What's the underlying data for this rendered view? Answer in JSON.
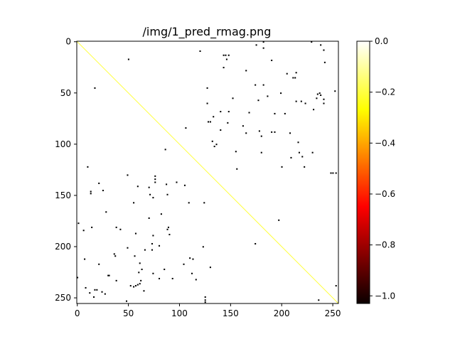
{
  "chart_data": {
    "type": "heatmap",
    "title": "/img/1_pred_rmag.png",
    "xlabel": "",
    "ylabel": "",
    "size": 256,
    "xlim": [
      0,
      255
    ],
    "ylim": [
      255,
      0
    ],
    "xticks": [
      0,
      50,
      100,
      150,
      200,
      250
    ],
    "yticks": [
      0,
      50,
      100,
      150,
      200,
      250
    ],
    "colormap": "hot",
    "background_value": 0.0,
    "diagonal": {
      "value": -0.21,
      "color": "#ffff40"
    },
    "marked_value": -1.0,
    "marked_color": "#000000",
    "colorbar": {
      "vmin": -1.03,
      "vmax": 0.0,
      "ticks": [
        0.0,
        -0.2,
        -0.4,
        -0.6,
        -0.8,
        -1.0
      ],
      "tick_labels": [
        "0.0",
        "−0.2",
        "−0.4",
        "−0.6",
        "−0.8",
        "−1.0"
      ]
    },
    "marked_cells_rowcol": [
      [
        0,
        182
      ],
      [
        0,
        229
      ],
      [
        3,
        175
      ],
      [
        3,
        238
      ],
      [
        6,
        182
      ],
      [
        8,
        241
      ],
      [
        9,
        120
      ],
      [
        13,
        143
      ],
      [
        13,
        145
      ],
      [
        13,
        148
      ],
      [
        17,
        50
      ],
      [
        17,
        146
      ],
      [
        18,
        190
      ],
      [
        20,
        242
      ],
      [
        25,
        143
      ],
      [
        28,
        165
      ],
      [
        30,
        214
      ],
      [
        31,
        205
      ],
      [
        35,
        211
      ],
      [
        35,
        213
      ],
      [
        42,
        174
      ],
      [
        42,
        182
      ],
      [
        45,
        17
      ],
      [
        45,
        127
      ],
      [
        48,
        252
      ],
      [
        50,
        199
      ],
      [
        50,
        237
      ],
      [
        51,
        235
      ],
      [
        52,
        238
      ],
      [
        53,
        186
      ],
      [
        55,
        152
      ],
      [
        55,
        234
      ],
      [
        56,
        241
      ],
      [
        57,
        177
      ],
      [
        58,
        214
      ],
      [
        58,
        219
      ],
      [
        60,
        127
      ],
      [
        60,
        223
      ],
      [
        60,
        241
      ],
      [
        66,
        231
      ],
      [
        68,
        140
      ],
      [
        68,
        148
      ],
      [
        69,
        168
      ],
      [
        70,
        193
      ],
      [
        70,
        203
      ],
      [
        73,
        133
      ],
      [
        78,
        128
      ],
      [
        78,
        130
      ],
      [
        79,
        147
      ],
      [
        82,
        162
      ],
      [
        84,
        106
      ],
      [
        86,
        140
      ],
      [
        87,
        178
      ],
      [
        88,
        190
      ],
      [
        88,
        193
      ],
      [
        89,
        165
      ],
      [
        89,
        208
      ],
      [
        92,
        180
      ],
      [
        97,
        132
      ],
      [
        98,
        216
      ],
      [
        100,
        136
      ],
      [
        102,
        134
      ],
      [
        105,
        86
      ],
      [
        107,
        155
      ],
      [
        108,
        180
      ],
      [
        108,
        217
      ],
      [
        108,
        230
      ],
      [
        112,
        220
      ],
      [
        113,
        209
      ],
      [
        122,
        10
      ],
      [
        122,
        200
      ],
      [
        122,
        222
      ],
      [
        124,
        156
      ],
      [
        128,
        248
      ],
      [
        128,
        250
      ],
      [
        128,
        253
      ],
      [
        130,
        49
      ],
      [
        131,
        76
      ],
      [
        134,
        76
      ],
      [
        137,
        76
      ],
      [
        137,
        97
      ],
      [
        138,
        21
      ],
      [
        139,
        87
      ],
      [
        140,
        105
      ],
      [
        141,
        59
      ],
      [
        142,
        70
      ],
      [
        145,
        25
      ],
      [
        146,
        13
      ],
      [
        148,
        13
      ],
      [
        149,
        71
      ],
      [
        149,
        88
      ],
      [
        152,
        74
      ],
      [
        157,
        55
      ],
      [
        157,
        109
      ],
      [
        157,
        124
      ],
      [
        166,
        28
      ],
      [
        168,
        82
      ],
      [
        172,
        70
      ],
      [
        174,
        197
      ],
      [
        177,
        1
      ],
      [
        181,
        14
      ],
      [
        181,
        38
      ],
      [
        181,
        89
      ],
      [
        183,
        42
      ],
      [
        183,
        88
      ],
      [
        184,
        6
      ],
      [
        187,
        57
      ],
      [
        188,
        90
      ],
      [
        189,
        74
      ],
      [
        197,
        174
      ],
      [
        197,
        73
      ],
      [
        199,
        80
      ],
      [
        200,
        123
      ],
      [
        201,
        49
      ],
      [
        203,
        66
      ],
      [
        203,
        73
      ],
      [
        207,
        36
      ],
      [
        209,
        37
      ],
      [
        209,
        56
      ],
      [
        211,
        110
      ],
      [
        212,
        113
      ],
      [
        212,
        7
      ],
      [
        216,
        61
      ],
      [
        217,
        104
      ],
      [
        217,
        21
      ],
      [
        220,
        130
      ],
      [
        222,
        63
      ],
      [
        222,
        85
      ],
      [
        225,
        60
      ],
      [
        226,
        74
      ],
      [
        226,
        112
      ],
      [
        228,
        31
      ],
      [
        228,
        30
      ],
      [
        230,
        0
      ],
      [
        231,
        80
      ],
      [
        231,
        93
      ],
      [
        232,
        116
      ],
      [
        233,
        62
      ],
      [
        233,
        38
      ],
      [
        236,
        61
      ],
      [
        237,
        59
      ],
      [
        238,
        57
      ],
      [
        238,
        253
      ],
      [
        238,
        52
      ],
      [
        239,
        55
      ],
      [
        240,
        8
      ],
      [
        242,
        17
      ],
      [
        242,
        19
      ],
      [
        243,
        65
      ],
      [
        244,
        24
      ],
      [
        245,
        12
      ],
      [
        246,
        27
      ],
      [
        249,
        125
      ],
      [
        249,
        16
      ],
      [
        252,
        125
      ],
      [
        252,
        236
      ],
      [
        253,
        48
      ],
      [
        254,
        125
      ]
    ]
  }
}
